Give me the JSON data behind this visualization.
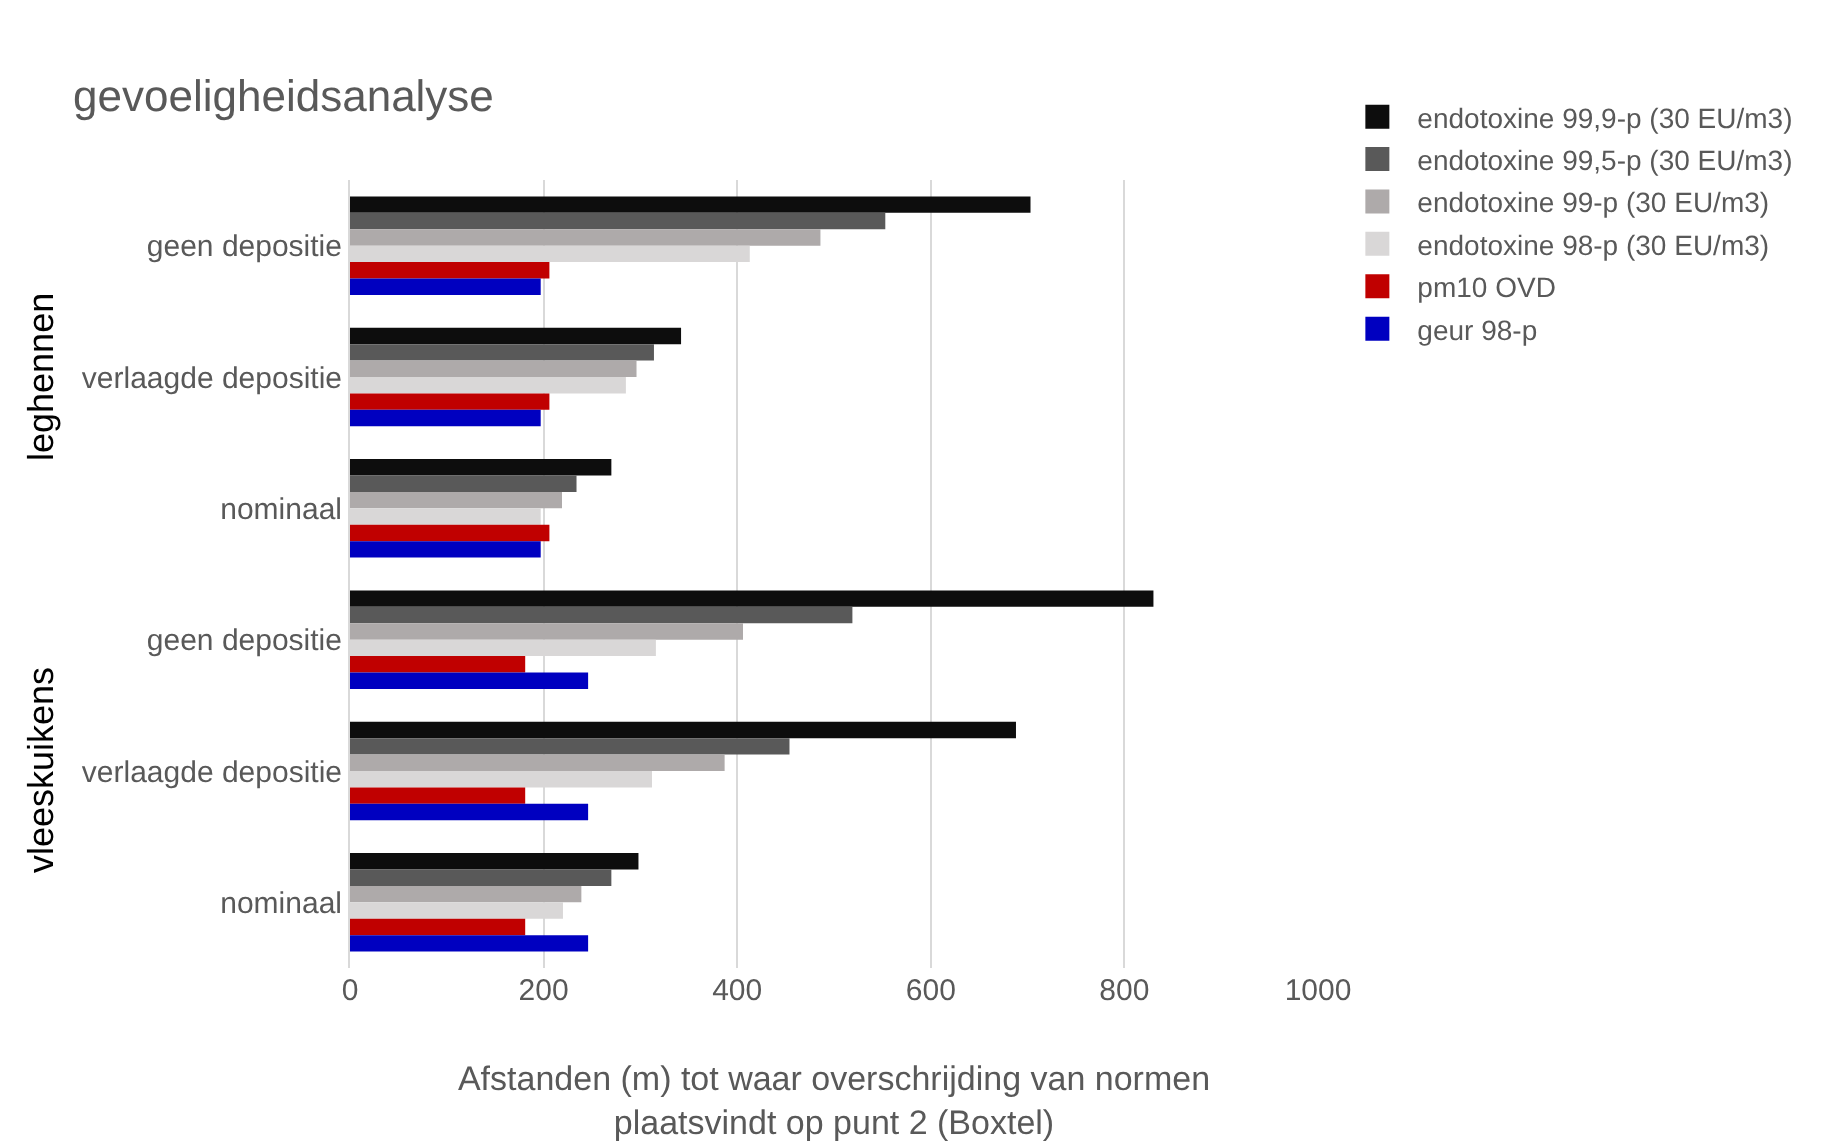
{
  "chart_data": {
    "type": "bar",
    "orientation": "horizontal",
    "title": "gevoeligheidsanalyse",
    "xlabel": "Afstanden (m) tot waar overschrijding van normen\nplaatsvindt op punt 2 (Boxtel)",
    "annotations": [
      "leghennen",
      "vleeskuikens"
    ],
    "categories": [
      "geen depositie",
      "verlaagde depositie",
      "nominaal",
      "geen depositie",
      "verlaagde depositie",
      "nominaal"
    ],
    "series": [
      {
        "name": "endotoxine 99,9-p (30 EU/m3)",
        "color": "#0d0d0d",
        "values": [
          703,
          342,
          270,
          830,
          688,
          298
        ]
      },
      {
        "name": "endotoxine 99,5-p (30 EU/m3)",
        "color": "#595959",
        "values": [
          553,
          314,
          234,
          519,
          454,
          270
        ]
      },
      {
        "name": "endotoxine 99-p (30 EU/m3)",
        "color": "#aeaaaa",
        "values": [
          486,
          296,
          219,
          406,
          387,
          239
        ]
      },
      {
        "name": "endotoxine 98-p (30 EU/m3)",
        "color": "#d9d7d7",
        "values": [
          413,
          285,
          197,
          316,
          312,
          220
        ]
      },
      {
        "name": "pm10 OVD",
        "color": "#c00000",
        "values": [
          206,
          206,
          206,
          181,
          181,
          181
        ]
      },
      {
        "name": "geur 98-p",
        "color": "#0000c0",
        "values": [
          197,
          197,
          197,
          246,
          246,
          246
        ]
      }
    ],
    "xlim": [
      0,
      1000
    ],
    "xticks": [
      0,
      200,
      400,
      600,
      800,
      1000
    ],
    "grid": "x",
    "legend": "right"
  }
}
